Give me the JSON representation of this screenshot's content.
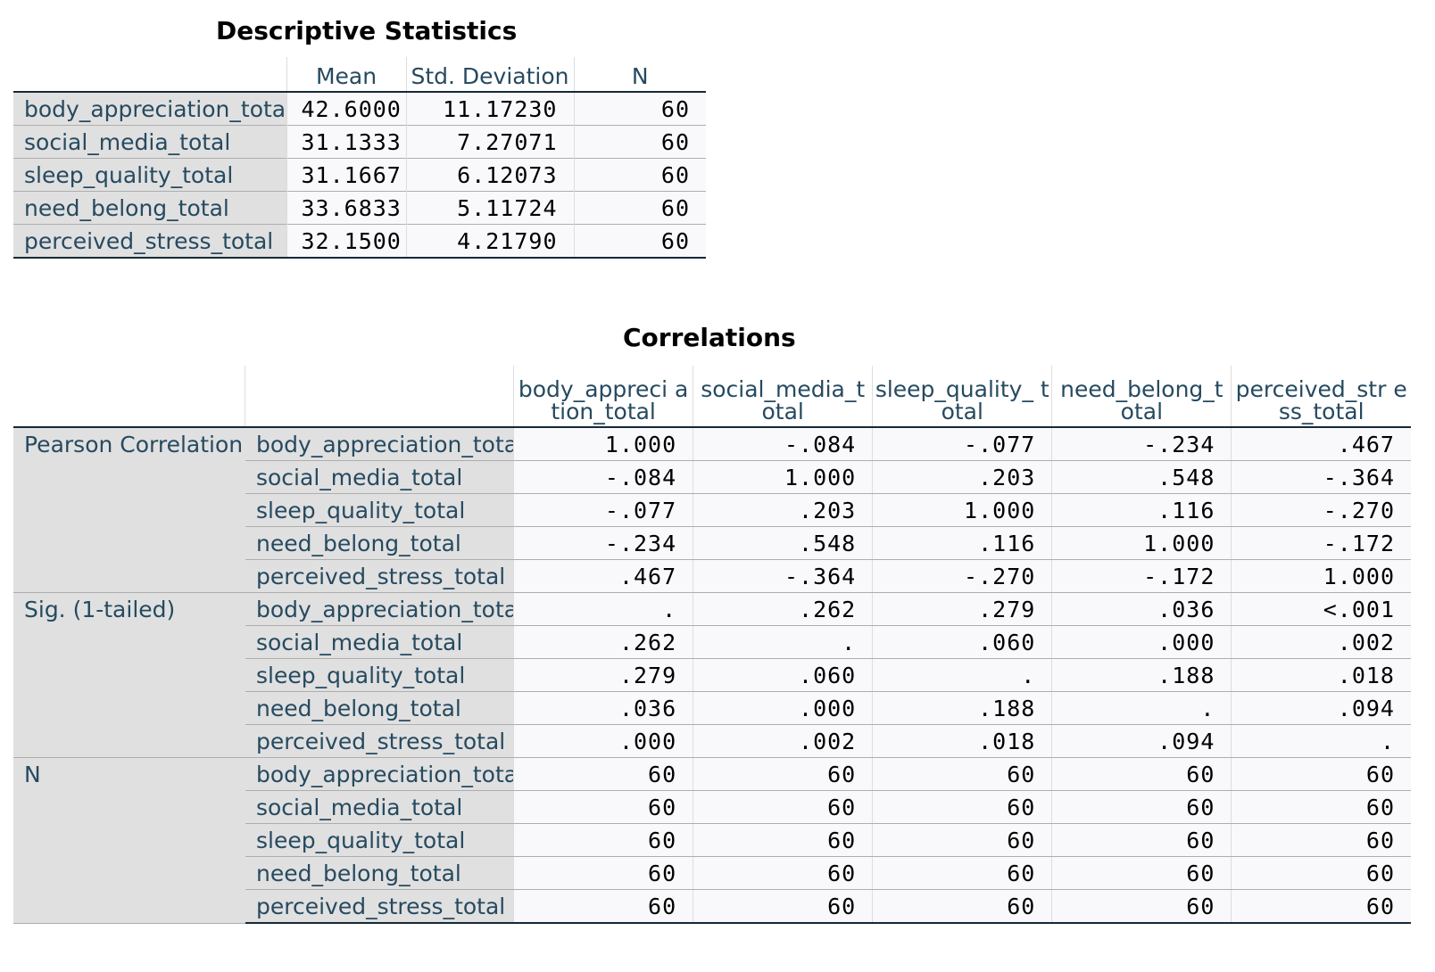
{
  "descriptive": {
    "title": "Descriptive Statistics",
    "headers": [
      "Mean",
      "Std. Deviation",
      "N"
    ],
    "rows": [
      {
        "label": "body_appreciation_total",
        "mean": "42.6000",
        "sd": "11.17230",
        "n": "60"
      },
      {
        "label": "social_media_total",
        "mean": "31.1333",
        "sd": "7.27071",
        "n": "60"
      },
      {
        "label": "sleep_quality_total",
        "mean": "31.1667",
        "sd": "6.12073",
        "n": "60"
      },
      {
        "label": "need_belong_total",
        "mean": "33.6833",
        "sd": "5.11724",
        "n": "60"
      },
      {
        "label": "perceived_stress_total",
        "mean": "32.1500",
        "sd": "4.21790",
        "n": "60"
      }
    ]
  },
  "correlations": {
    "title": "Correlations",
    "headers": [
      "body_appreciation_total",
      "social_media_total",
      "sleep_quality_total",
      "need_belong_total",
      "perceived_stress_total"
    ],
    "header_display": [
      "body_appreci ation_total",
      "social_media_t otal",
      "sleep_quality_ total",
      "need_belong_t otal",
      "perceived_str ess_total"
    ],
    "groups": [
      {
        "label": "Pearson Correlation",
        "rows": [
          {
            "label": "body_appreciation_total",
            "values": [
              "1.000",
              "-.084",
              "-.077",
              "-.234",
              ".467"
            ]
          },
          {
            "label": "social_media_total",
            "values": [
              "-.084",
              "1.000",
              ".203",
              ".548",
              "-.364"
            ]
          },
          {
            "label": "sleep_quality_total",
            "values": [
              "-.077",
              ".203",
              "1.000",
              ".116",
              "-.270"
            ]
          },
          {
            "label": "need_belong_total",
            "values": [
              "-.234",
              ".548",
              ".116",
              "1.000",
              "-.172"
            ]
          },
          {
            "label": "perceived_stress_total",
            "values": [
              ".467",
              "-.364",
              "-.270",
              "-.172",
              "1.000"
            ]
          }
        ]
      },
      {
        "label": "Sig. (1-tailed)",
        "rows": [
          {
            "label": "body_appreciation_total",
            "values": [
              ".",
              ".262",
              ".279",
              ".036",
              "<.001"
            ]
          },
          {
            "label": "social_media_total",
            "values": [
              ".262",
              ".",
              ".060",
              ".000",
              ".002"
            ]
          },
          {
            "label": "sleep_quality_total",
            "values": [
              ".279",
              ".060",
              ".",
              ".188",
              ".018"
            ]
          },
          {
            "label": "need_belong_total",
            "values": [
              ".036",
              ".000",
              ".188",
              ".",
              ".094"
            ]
          },
          {
            "label": "perceived_stress_total",
            "values": [
              ".000",
              ".002",
              ".018",
              ".094",
              "."
            ]
          }
        ]
      },
      {
        "label": "N",
        "rows": [
          {
            "label": "body_appreciation_total",
            "values": [
              "60",
              "60",
              "60",
              "60",
              "60"
            ]
          },
          {
            "label": "social_media_total",
            "values": [
              "60",
              "60",
              "60",
              "60",
              "60"
            ]
          },
          {
            "label": "sleep_quality_total",
            "values": [
              "60",
              "60",
              "60",
              "60",
              "60"
            ]
          },
          {
            "label": "need_belong_total",
            "values": [
              "60",
              "60",
              "60",
              "60",
              "60"
            ]
          },
          {
            "label": "perceived_stress_total",
            "values": [
              "60",
              "60",
              "60",
              "60",
              "60"
            ]
          }
        ]
      }
    ]
  }
}
